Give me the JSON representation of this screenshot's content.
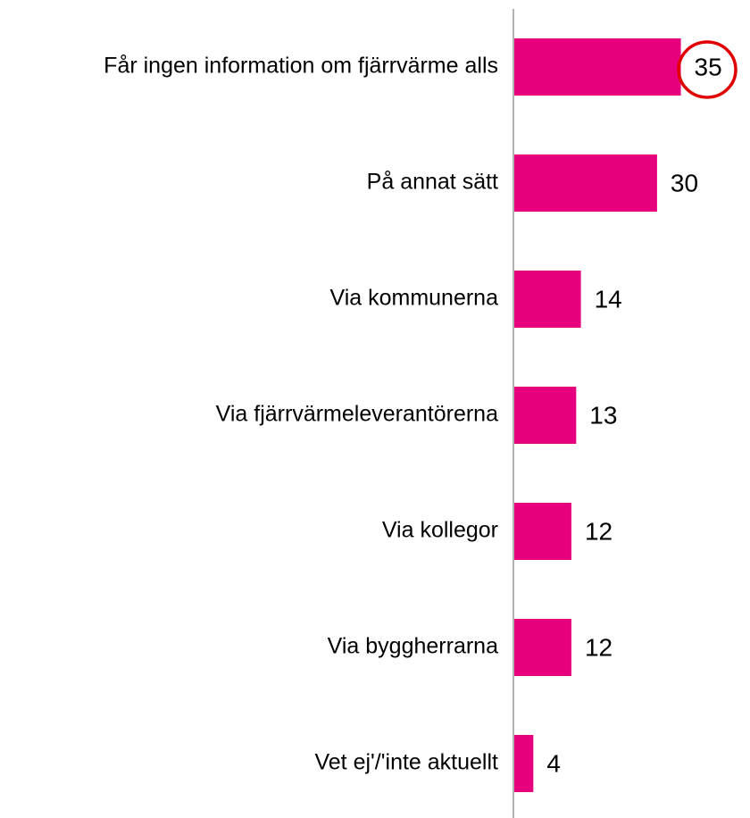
{
  "chart_data": {
    "type": "bar",
    "orientation": "horizontal",
    "categories": [
      "Får ingen information om fjärrvärme alls",
      "På annat sätt",
      "Via kommunerna",
      "Via fjärrvärmeleverantörerna",
      "Via kollegor",
      "Via byggherrarna",
      "Vet ej'/'inte aktuellt"
    ],
    "values": [
      35,
      30,
      14,
      13,
      12,
      12,
      4
    ],
    "color": "#e6007e"
  }
}
